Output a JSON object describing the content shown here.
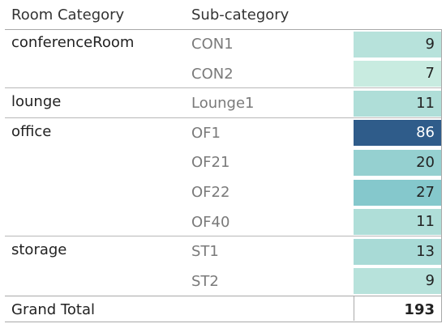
{
  "chart_data": {
    "type": "table",
    "columns": [
      "Room Category",
      "Sub-category",
      ""
    ],
    "rows": [
      {
        "category": "conferenceRoom",
        "subcategory": "CON1",
        "value": 9
      },
      {
        "category": "",
        "subcategory": "CON2",
        "value": 7
      },
      {
        "category": "lounge",
        "subcategory": "Lounge1",
        "value": 11
      },
      {
        "category": "office",
        "subcategory": "OF1",
        "value": 86
      },
      {
        "category": "",
        "subcategory": "OF21",
        "value": 20
      },
      {
        "category": "",
        "subcategory": "OF22",
        "value": 27
      },
      {
        "category": "",
        "subcategory": "OF40",
        "value": 11
      },
      {
        "category": "storage",
        "subcategory": "ST1",
        "value": 13
      },
      {
        "category": "",
        "subcategory": "ST2",
        "value": 9
      }
    ],
    "grand_total_label": "Grand Total",
    "grand_total": 193,
    "color_scale": {
      "low": "#c8ebe0",
      "mid": "#7cc3c9",
      "high": "#2f5c8a"
    }
  }
}
